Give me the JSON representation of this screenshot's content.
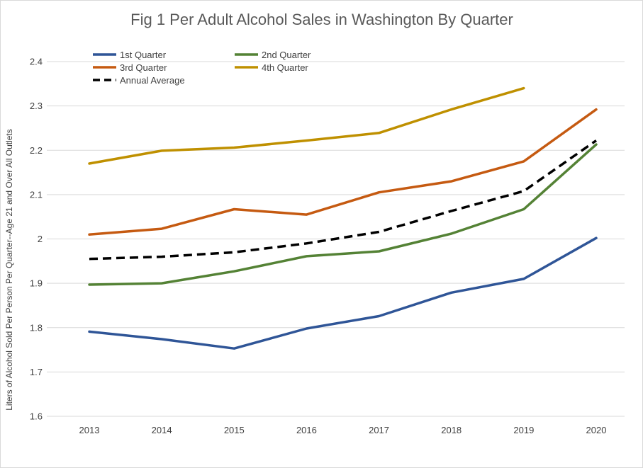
{
  "chart_data": {
    "type": "line",
    "title": "Fig 1 Per Adult Alcohol Sales in Washington By Quarter",
    "xlabel": "",
    "ylabel": "Liters of Alcohol Sold Per Person Per Quarter--Age 21 and Over All Outlets",
    "x": [
      "2013",
      "2014",
      "2015",
      "2016",
      "2017",
      "2018",
      "2019",
      "2020"
    ],
    "ylim": [
      1.6,
      2.4
    ],
    "yticks": [
      "1.6",
      "1.7",
      "1.8",
      "1.9",
      "2",
      "2.1",
      "2.2",
      "2.3",
      "2.4"
    ],
    "grid": true,
    "legend_position": "top-left",
    "series": [
      {
        "name": "1st Quarter",
        "color": "#2f5597",
        "dash": false,
        "values": [
          1.791,
          1.774,
          1.753,
          1.798,
          1.826,
          1.879,
          1.91,
          2.002
        ]
      },
      {
        "name": "2nd Quarter",
        "color": "#548235",
        "dash": false,
        "values": [
          1.897,
          1.9,
          1.927,
          1.961,
          1.972,
          2.012,
          2.067,
          2.213
        ]
      },
      {
        "name": "3rd Quarter",
        "color": "#c55a11",
        "dash": false,
        "values": [
          2.01,
          2.023,
          2.067,
          2.055,
          2.105,
          2.13,
          2.175,
          2.292
        ]
      },
      {
        "name": "4th Quarter",
        "color": "#bf9000",
        "dash": false,
        "values": [
          2.17,
          2.199,
          2.206,
          2.222,
          2.239,
          2.292,
          2.34,
          null
        ]
      },
      {
        "name": "Annual Average",
        "color": "#000000",
        "dash": true,
        "values": [
          1.955,
          1.96,
          1.97,
          1.99,
          2.016,
          2.063,
          2.108,
          2.222
        ]
      }
    ]
  }
}
